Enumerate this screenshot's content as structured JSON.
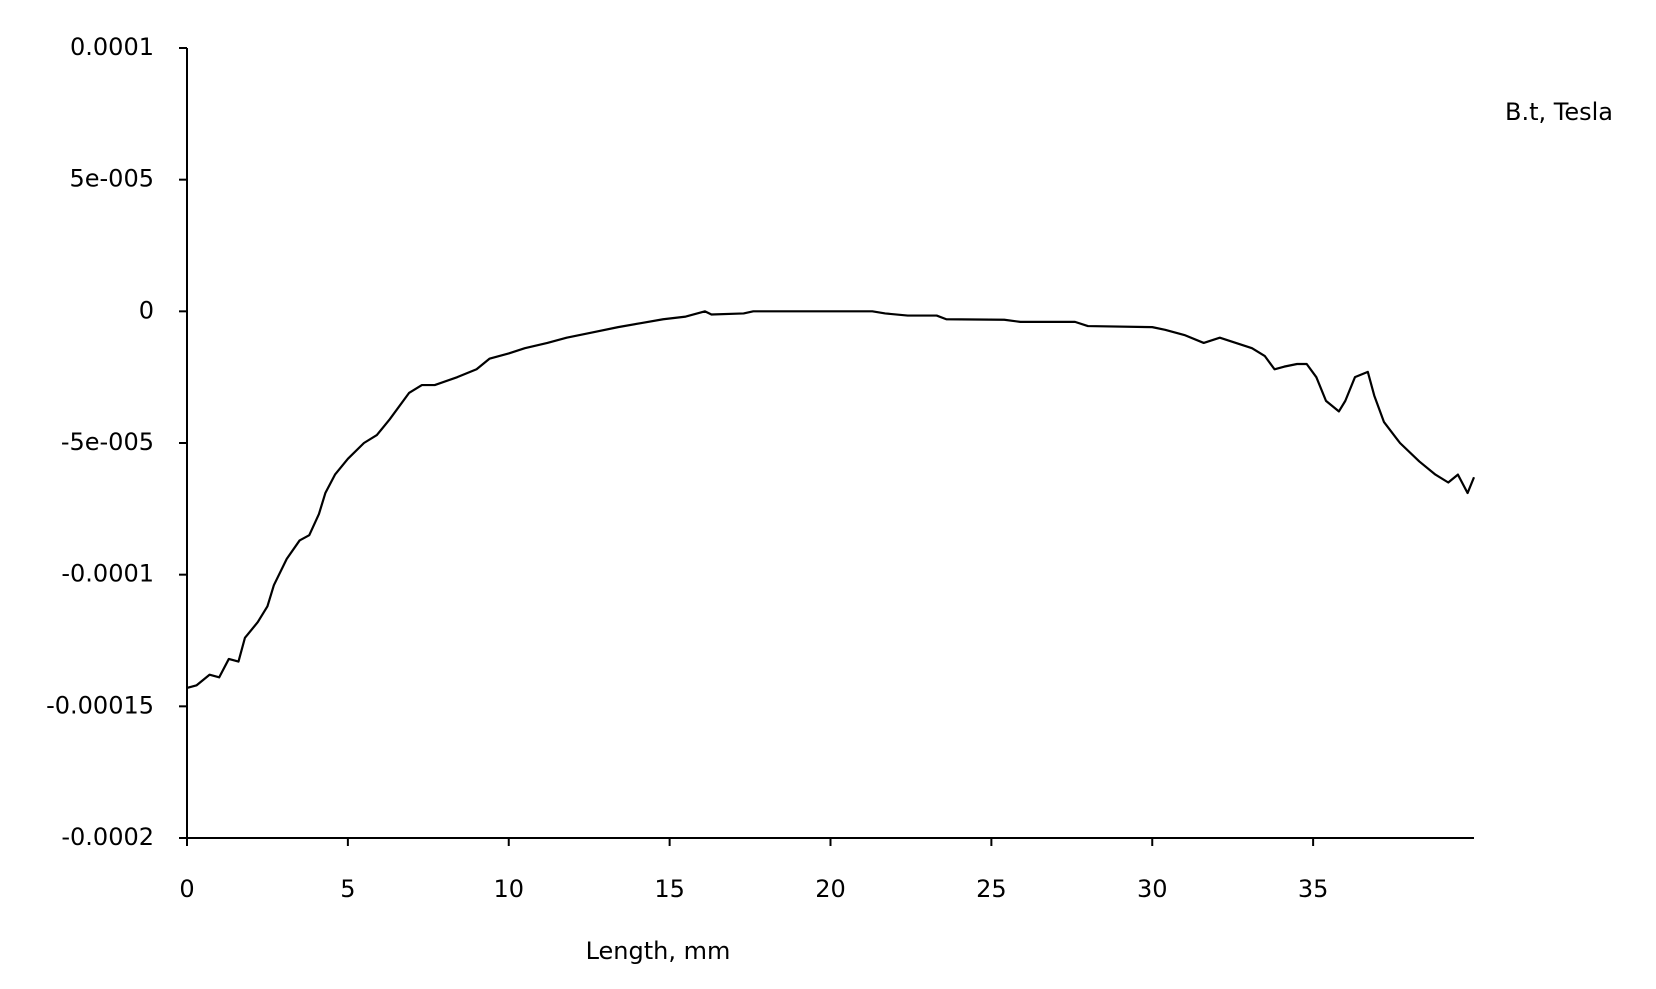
{
  "chart_data": {
    "type": "line",
    "x_label": "Length, mm",
    "x": [
      0,
      0.3,
      0.7,
      1.0,
      1.3,
      1.6,
      1.8,
      2.2,
      2.5,
      2.7,
      3.1,
      3.5,
      3.8,
      4.1,
      4.3,
      4.6,
      5.0,
      5.5,
      5.9,
      6.3,
      6.9,
      7.3,
      7.7,
      8.4,
      9.0,
      9.4,
      10.0,
      10.5,
      11.2,
      11.8,
      12.6,
      13.4,
      14.1,
      14.8,
      15.5,
      16.1,
      16.3,
      17.3,
      17.6,
      21.3,
      21.7,
      22.4,
      23.3,
      23.6,
      25.4,
      25.9,
      27.6,
      28.0,
      30.0,
      30.4,
      31.0,
      31.6,
      32.1,
      32.6,
      33.1,
      33.5,
      33.8,
      34.1,
      34.5,
      34.8,
      35.1,
      35.4,
      35.8,
      36.0,
      36.3,
      36.7,
      36.9,
      37.2,
      37.7,
      38.3,
      38.8,
      39.2,
      39.5,
      39.8,
      40.0
    ],
    "series": [
      {
        "name": "B.t, Tesla",
        "color": "#000000",
        "values": [
          -0.000143,
          -0.000142,
          -0.000138,
          -0.000139,
          -0.000132,
          -0.000133,
          -0.000124,
          -0.000118,
          -0.000112,
          -0.000104,
          -9.4e-05,
          -8.7e-05,
          -8.5e-05,
          -7.7e-05,
          -6.9e-05,
          -6.2e-05,
          -5.6e-05,
          -5e-05,
          -4.7e-05,
          -4.1e-05,
          -3.1e-05,
          -2.8e-05,
          -2.8e-05,
          -2.5e-05,
          -2.2e-05,
          -1.8e-05,
          -1.6e-05,
          -1.4e-05,
          -1.2e-05,
          -1e-05,
          -8e-06,
          -6e-06,
          -4.5e-06,
          -3e-06,
          -2e-06,
          0,
          -1.2e-06,
          -8e-07,
          0,
          0,
          -8e-07,
          -1.6e-06,
          -1.6e-06,
          -3e-06,
          -3.2e-06,
          -4e-06,
          -4e-06,
          -5.6e-06,
          -6e-06,
          -7e-06,
          -9e-06,
          -1.2e-05,
          -1e-05,
          -1.2e-05,
          -1.4e-05,
          -1.7e-05,
          -2.2e-05,
          -2.1e-05,
          -2e-05,
          -2e-05,
          -2.5e-05,
          -3.4e-05,
          -3.8e-05,
          -3.4e-05,
          -2.5e-05,
          -2.3e-05,
          -3.2e-05,
          -4.2e-05,
          -5e-05,
          -5.7e-05,
          -6.2e-05,
          -6.5e-05,
          -6.2e-05,
          -6.9e-05,
          -6.3e-05
        ]
      }
    ],
    "xlim": [
      0,
      40
    ],
    "xticks": [
      0,
      5,
      10,
      15,
      20,
      25,
      30,
      35
    ],
    "ylim": [
      -0.0002,
      0.0001
    ],
    "yticks": [
      -0.0002,
      -0.00015,
      -0.0001,
      {
        "value": -5e-05,
        "label": "-5e-005"
      },
      0,
      {
        "value": 5e-05,
        "label": "5e-005"
      },
      0.0001
    ],
    "grid": false
  }
}
